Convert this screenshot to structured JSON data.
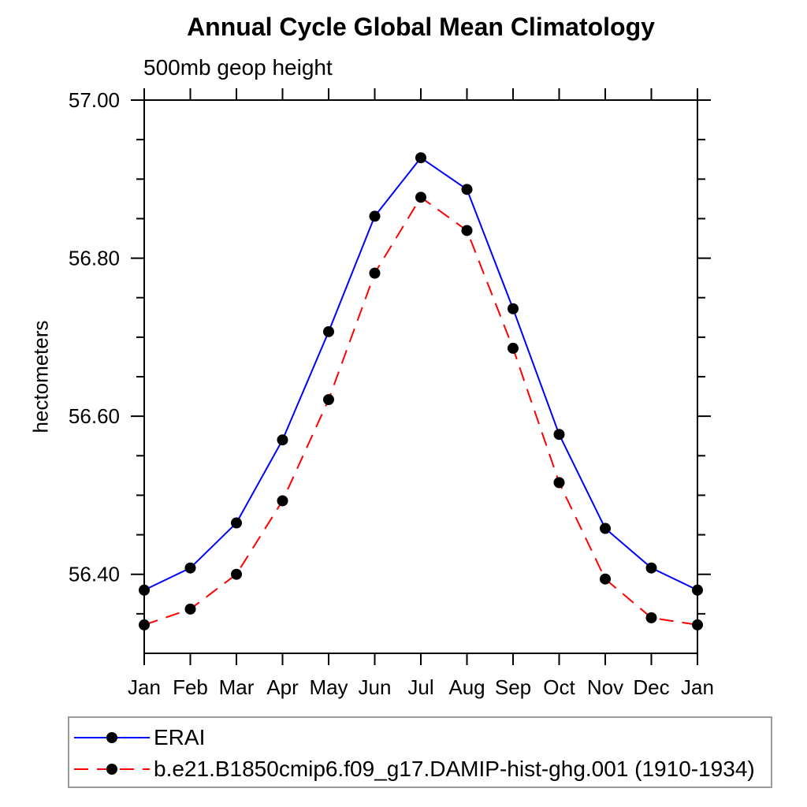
{
  "chart_data": {
    "type": "line",
    "title": "Annual Cycle Global Mean Climatology",
    "subtitle": "500mb geop height",
    "ylabel": "hectometers",
    "xlabel": "",
    "x_categories": [
      "Jan",
      "Feb",
      "Mar",
      "Apr",
      "May",
      "Jun",
      "Jul",
      "Aug",
      "Sep",
      "Oct",
      "Nov",
      "Dec",
      "Jan"
    ],
    "ylim": [
      56.3,
      57.0
    ],
    "y_major_ticks": [
      56.4,
      56.6,
      56.8,
      57.0
    ],
    "y_major_labels": [
      "56.40",
      "56.60",
      "56.80",
      "57.00"
    ],
    "y_minor_step": 0.05,
    "grid": false,
    "legend_position": "bottom-left-box",
    "axis_color": "#000000",
    "marker_color": "#000000",
    "series": [
      {
        "name": "ERAI",
        "color": "#0000ff",
        "style": "solid",
        "marker": "filled-circle",
        "values": [
          56.38,
          56.408,
          56.465,
          56.57,
          56.707,
          56.853,
          56.927,
          56.887,
          56.736,
          56.577,
          56.458,
          56.408,
          56.38
        ]
      },
      {
        "name": "b.e21.B1850cmip6.f09_g17.DAMIP-hist-ghg.001 (1910-1934)",
        "color": "#ff0000",
        "style": "dashed",
        "marker": "filled-circle",
        "values": [
          56.336,
          56.356,
          56.4,
          56.493,
          56.621,
          56.781,
          56.877,
          56.835,
          56.686,
          56.516,
          56.394,
          56.345,
          56.336
        ]
      }
    ]
  }
}
